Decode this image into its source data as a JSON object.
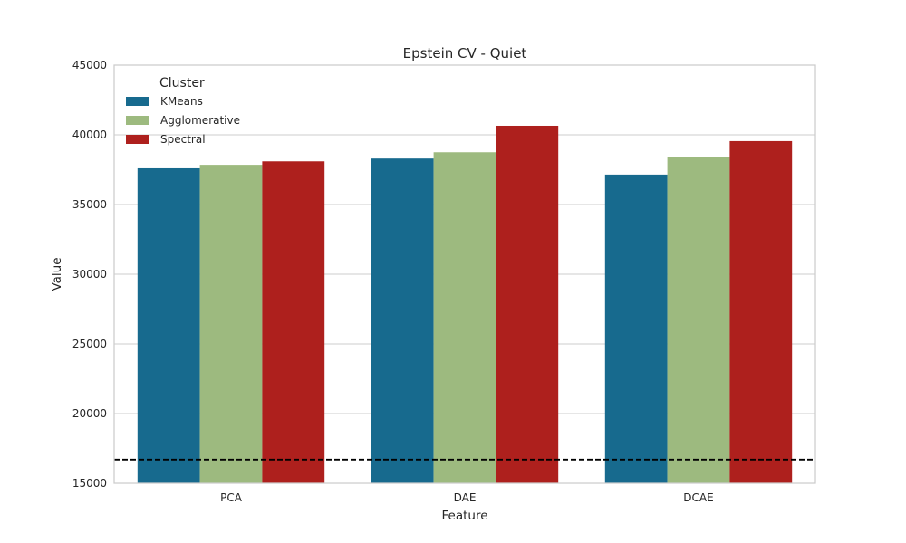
{
  "chart_data": {
    "type": "bar",
    "title": "Epstein CV - Quiet",
    "xlabel": "Feature",
    "ylabel": "Value",
    "categories": [
      "PCA",
      "DAE",
      "DCAE"
    ],
    "series": [
      {
        "name": "KMeans",
        "color": "#176a8e",
        "values": [
          37600,
          38300,
          37150
        ]
      },
      {
        "name": "Agglomerative",
        "color": "#9dba7f",
        "values": [
          37850,
          38750,
          38400
        ]
      },
      {
        "name": "Spectral",
        "color": "#ae201d",
        "values": [
          38100,
          40650,
          39550
        ]
      }
    ],
    "ylim": [
      15000,
      45000
    ],
    "yticks": [
      15000,
      20000,
      25000,
      30000,
      35000,
      40000,
      45000
    ],
    "grid": true,
    "legend": {
      "title": "Cluster",
      "placement": "top-left"
    },
    "reference_line": {
      "value": 16700,
      "style": "dashed",
      "color": "#000000"
    }
  }
}
